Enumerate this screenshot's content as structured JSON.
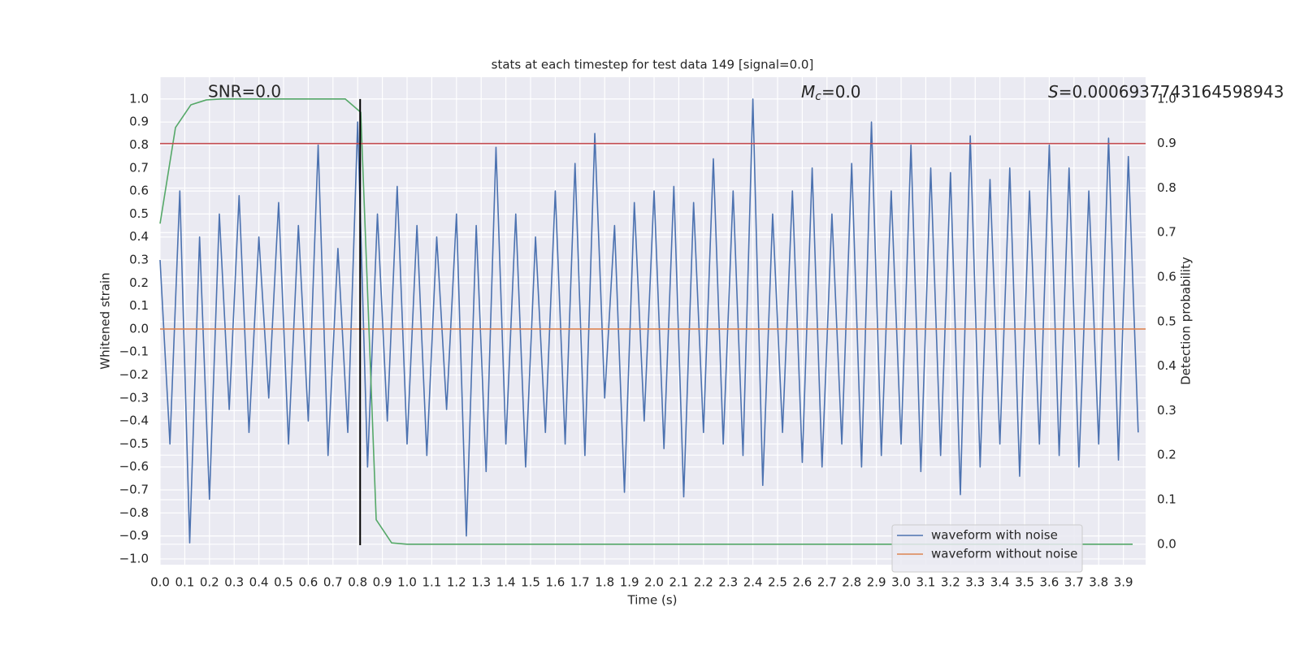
{
  "chart_data": {
    "type": "line",
    "title": "stats at each timestep for test data 149 [signal=0.0]",
    "xlabel": "Time (s)",
    "ylabel": "Whitened strain",
    "y2label": "Detection probability",
    "annotations": {
      "snr": "SNR=0.0",
      "mc": {
        "symbol": "M",
        "subscript": "c",
        "text": "=0.0"
      },
      "s": {
        "symbol": "S",
        "text": "=0.0006937743164598943"
      }
    },
    "series": [
      {
        "name": "waveform with noise",
        "color": "#4c72b0",
        "axis": "y",
        "x": [
          0,
          0.04,
          0.08,
          0.12,
          0.16,
          0.2,
          0.24,
          0.28,
          0.32,
          0.36,
          0.4,
          0.44,
          0.48,
          0.52,
          0.56,
          0.6,
          0.64,
          0.68,
          0.72,
          0.76,
          0.8,
          0.84,
          0.88,
          0.92,
          0.96,
          1,
          1.04,
          1.08,
          1.12,
          1.16,
          1.2,
          1.24,
          1.28,
          1.32,
          1.36,
          1.4,
          1.44,
          1.48,
          1.52,
          1.56,
          1.6,
          1.64,
          1.68,
          1.72,
          1.76,
          1.8,
          1.84,
          1.88,
          1.92,
          1.96,
          2,
          2.04,
          2.08,
          2.12,
          2.16,
          2.2,
          2.24,
          2.28,
          2.32,
          2.36,
          2.4,
          2.44,
          2.48,
          2.52,
          2.56,
          2.6,
          2.64,
          2.68,
          2.72,
          2.76,
          2.8,
          2.84,
          2.88,
          2.92,
          2.96,
          3,
          3.04,
          3.08,
          3.12,
          3.16,
          3.2,
          3.24,
          3.28,
          3.32,
          3.36,
          3.4,
          3.44,
          3.48,
          3.52,
          3.56,
          3.6,
          3.64,
          3.68,
          3.72,
          3.76,
          3.8,
          3.84,
          3.88,
          3.92,
          3.96
        ],
        "values": [
          0.3,
          -0.5,
          0.6,
          -0.93,
          0.4,
          -0.74,
          0.5,
          -0.35,
          0.58,
          -0.45,
          0.4,
          -0.3,
          0.55,
          -0.5,
          0.45,
          -0.4,
          0.8,
          -0.55,
          0.35,
          -0.45,
          0.9,
          -0.6,
          0.5,
          -0.4,
          0.62,
          -0.5,
          0.45,
          -0.55,
          0.4,
          -0.35,
          0.5,
          -0.9,
          0.45,
          -0.62,
          0.79,
          -0.5,
          0.5,
          -0.6,
          0.4,
          -0.45,
          0.6,
          -0.5,
          0.72,
          -0.55,
          0.85,
          -0.3,
          0.45,
          -0.71,
          0.55,
          -0.4,
          0.6,
          -0.52,
          0.62,
          -0.73,
          0.55,
          -0.45,
          0.74,
          -0.5,
          0.6,
          -0.55,
          1.0,
          -0.68,
          0.5,
          -0.45,
          0.6,
          -0.58,
          0.7,
          -0.6,
          0.5,
          -0.5,
          0.72,
          -0.6,
          0.9,
          -0.55,
          0.6,
          -0.5,
          0.8,
          -0.62,
          0.7,
          -0.55,
          0.68,
          -0.72,
          0.84,
          -0.6,
          0.65,
          -0.5,
          0.7,
          -0.64,
          0.6,
          -0.5,
          0.8,
          -0.55,
          0.7,
          -0.6,
          0.6,
          -0.5,
          0.83,
          -0.57,
          0.75,
          -0.45
        ]
      },
      {
        "name": "waveform without noise",
        "color": "#dd8452",
        "axis": "y",
        "x": [
          0,
          3.99
        ],
        "values": [
          0,
          0
        ]
      },
      {
        "color": "#55a868",
        "axis": "y2",
        "x": [
          0,
          0.0625,
          0.125,
          0.1875,
          0.25,
          0.3125,
          0.375,
          0.4375,
          0.5,
          0.5625,
          0.625,
          0.6875,
          0.75,
          0.8125,
          0.875,
          0.9375,
          1.0,
          3.9375
        ],
        "values": [
          0.72,
          0.936,
          0.987,
          0.998,
          1.0,
          1.0,
          1.0,
          1.0,
          1.0,
          1.0,
          1.0,
          1.0,
          1.0,
          0.97,
          0.055,
          0.003,
          0.0,
          0.0
        ]
      }
    ],
    "vline": {
      "x": 0.81,
      "ymin": -0.94,
      "ymax": 1.0,
      "color": "#000000"
    },
    "threshold": {
      "y2": 0.9,
      "color": "#c44e52"
    },
    "xlim": [
      0,
      3.99
    ],
    "ylim": [
      -1.025,
      1.095
    ],
    "y2lim": [
      -0.046,
      1.049
    ],
    "xticks": [
      {
        "value": 0,
        "label": "0.0"
      },
      0.1,
      0.2,
      0.3,
      0.4,
      0.5,
      0.6,
      0.7,
      0.8,
      0.9,
      {
        "value": 1,
        "label": "1.0"
      },
      1.1,
      1.2,
      1.3,
      1.4,
      1.5,
      1.6,
      1.7,
      1.8,
      1.9,
      {
        "value": 2,
        "label": "2.0"
      },
      2.1,
      2.2,
      2.3,
      2.4,
      2.5,
      2.6,
      2.7,
      2.8,
      2.9,
      {
        "value": 3,
        "label": "3.0"
      },
      3.1,
      3.2,
      3.3,
      3.4,
      3.5,
      3.6,
      3.7,
      3.8,
      3.9
    ],
    "yticks": [
      {
        "value": 1,
        "label": "1.0"
      },
      0.9,
      0.8,
      0.7,
      0.6,
      0.5,
      0.4,
      0.3,
      0.2,
      0.1,
      {
        "value": 0,
        "label": "0.0"
      },
      {
        "value": -0.1,
        "label": "−0.1"
      },
      {
        "value": -0.2,
        "label": "−0.2"
      },
      {
        "value": -0.3,
        "label": "−0.3"
      },
      {
        "value": -0.4,
        "label": "−0.4"
      },
      {
        "value": -0.5,
        "label": "−0.5"
      },
      {
        "value": -0.6,
        "label": "−0.6"
      },
      {
        "value": -0.7,
        "label": "−0.7"
      },
      {
        "value": -0.8,
        "label": "−0.8"
      },
      {
        "value": -0.9,
        "label": "−0.9"
      },
      {
        "value": -1,
        "label": "−1.0"
      }
    ],
    "y2ticks": [
      {
        "value": 0,
        "label": "0.0"
      },
      0.1,
      0.2,
      0.3,
      0.4,
      0.5,
      0.6,
      0.7,
      0.8,
      0.9,
      {
        "value": 1,
        "label": "1.0"
      }
    ],
    "grid": true,
    "legend": "lower right",
    "background": "#eaeaf2"
  }
}
